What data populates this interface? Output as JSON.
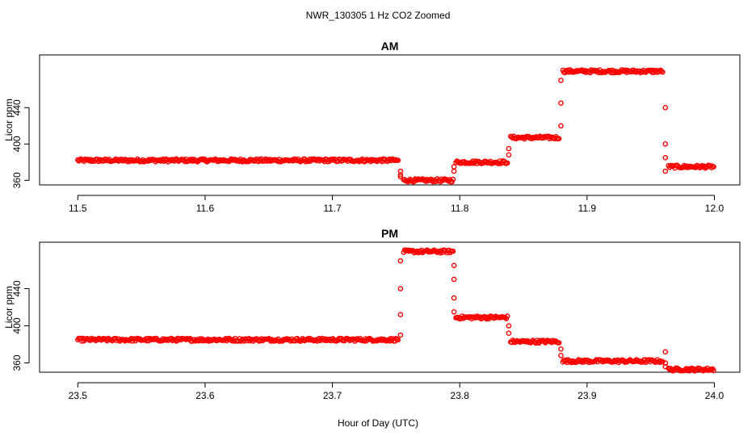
{
  "figure": {
    "title": "NWR_130305  1 Hz CO2 Zoomed",
    "xlabel": "Hour of Day (UTC)"
  },
  "colors": {
    "point": "#ff0000",
    "axis": "#000000"
  },
  "chart_data": [
    {
      "type": "scatter",
      "title": "AM",
      "xlabel": "Hour of Day (UTC)",
      "ylabel": "Licor ppm",
      "xlim": [
        11.47,
        12.02
      ],
      "ylim": [
        355,
        498
      ],
      "xticks": [
        11.5,
        11.6,
        11.7,
        11.8,
        11.9,
        12.0
      ],
      "xtick_labels": [
        "11.5",
        "11.6",
        "11.7",
        "11.8",
        "11.9",
        "12.0"
      ],
      "yticks": [
        360,
        400,
        440
      ],
      "ytick_labels": [
        "360",
        "400",
        "440"
      ],
      "segments": [
        {
          "x_start": 11.5,
          "x_end": 11.752,
          "y": 382
        },
        {
          "x_start": 11.756,
          "x_end": 11.795,
          "y": 360
        },
        {
          "x_start": 11.797,
          "x_end": 11.838,
          "y": 380
        },
        {
          "x_start": 11.84,
          "x_end": 11.878,
          "y": 407
        },
        {
          "x_start": 11.881,
          "x_end": 11.96,
          "y": 480
        },
        {
          "x_start": 11.964,
          "x_end": 12.0,
          "y": 375
        }
      ],
      "transitions": [
        {
          "x": 11.7535,
          "y": [
            370,
            364,
            366
          ]
        },
        {
          "x": 11.7955,
          "y": [
            370,
            375
          ]
        },
        {
          "x": 11.8385,
          "y": [
            388,
            395
          ]
        },
        {
          "x": 11.8795,
          "y": [
            420,
            445,
            470
          ]
        },
        {
          "x": 11.9615,
          "y": [
            440,
            400,
            385,
            370
          ]
        }
      ]
    },
    {
      "type": "scatter",
      "title": "PM",
      "xlabel": "Hour of Day (UTC)",
      "ylabel": "Licor ppm",
      "xlim": [
        23.47,
        24.02
      ],
      "ylim": [
        350,
        490
      ],
      "xticks": [
        23.5,
        23.6,
        23.7,
        23.8,
        23.9,
        24.0
      ],
      "xtick_labels": [
        "23.5",
        "23.6",
        "23.7",
        "23.8",
        "23.9",
        "24.0"
      ],
      "yticks": [
        360,
        400,
        440
      ],
      "ytick_labels": [
        "360",
        "400",
        "440"
      ],
      "segments": [
        {
          "x_start": 23.5,
          "x_end": 23.752,
          "y": 385
        },
        {
          "x_start": 23.756,
          "x_end": 23.795,
          "y": 480
        },
        {
          "x_start": 23.797,
          "x_end": 23.838,
          "y": 409
        },
        {
          "x_start": 23.84,
          "x_end": 23.878,
          "y": 383
        },
        {
          "x_start": 23.881,
          "x_end": 23.96,
          "y": 362
        },
        {
          "x_start": 23.964,
          "x_end": 24.0,
          "y": 353
        }
      ],
      "transitions": [
        {
          "x": 23.7535,
          "y": [
            390,
            412,
            440,
            470
          ]
        },
        {
          "x": 23.7955,
          "y": [
            465,
            450,
            430,
            415
          ]
        },
        {
          "x": 23.8385,
          "y": [
            400,
            392
          ]
        },
        {
          "x": 23.8795,
          "y": [
            375,
            368
          ]
        },
        {
          "x": 23.9615,
          "y": [
            372,
            360,
            356
          ]
        }
      ]
    }
  ]
}
